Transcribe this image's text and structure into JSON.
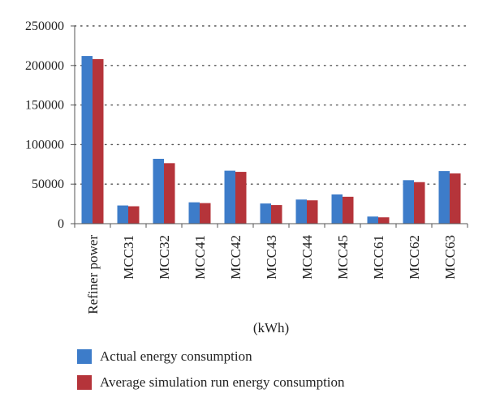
{
  "chart_data": {
    "type": "bar",
    "xlabel": "(kWh)",
    "ylabel": "",
    "ylim": [
      0,
      250000
    ],
    "yticks": [
      0,
      50000,
      100000,
      150000,
      200000,
      250000
    ],
    "ytick_labels": [
      "0",
      "50000",
      "100000",
      "150000",
      "200000",
      "250000"
    ],
    "grid": "horizontal dotted",
    "legend_position": "bottom",
    "categories": [
      "Refiner power",
      "MCC31",
      "MCC32",
      "MCC41",
      "MCC42",
      "MCC43",
      "MCC44",
      "MCC45",
      "MCC61",
      "MCC62",
      "MCC63"
    ],
    "series": [
      {
        "name": "Actual energy consumption",
        "color": "#3d7cc9",
        "values": [
          212000,
          23000,
          82000,
          27000,
          67000,
          25500,
          30500,
          37000,
          9000,
          55000,
          66500
        ]
      },
      {
        "name": "Average simulation run energy consumption",
        "color": "#b5343a",
        "values": [
          208000,
          22000,
          76500,
          26000,
          65500,
          23500,
          29500,
          34000,
          8000,
          52500,
          63500
        ]
      }
    ]
  }
}
